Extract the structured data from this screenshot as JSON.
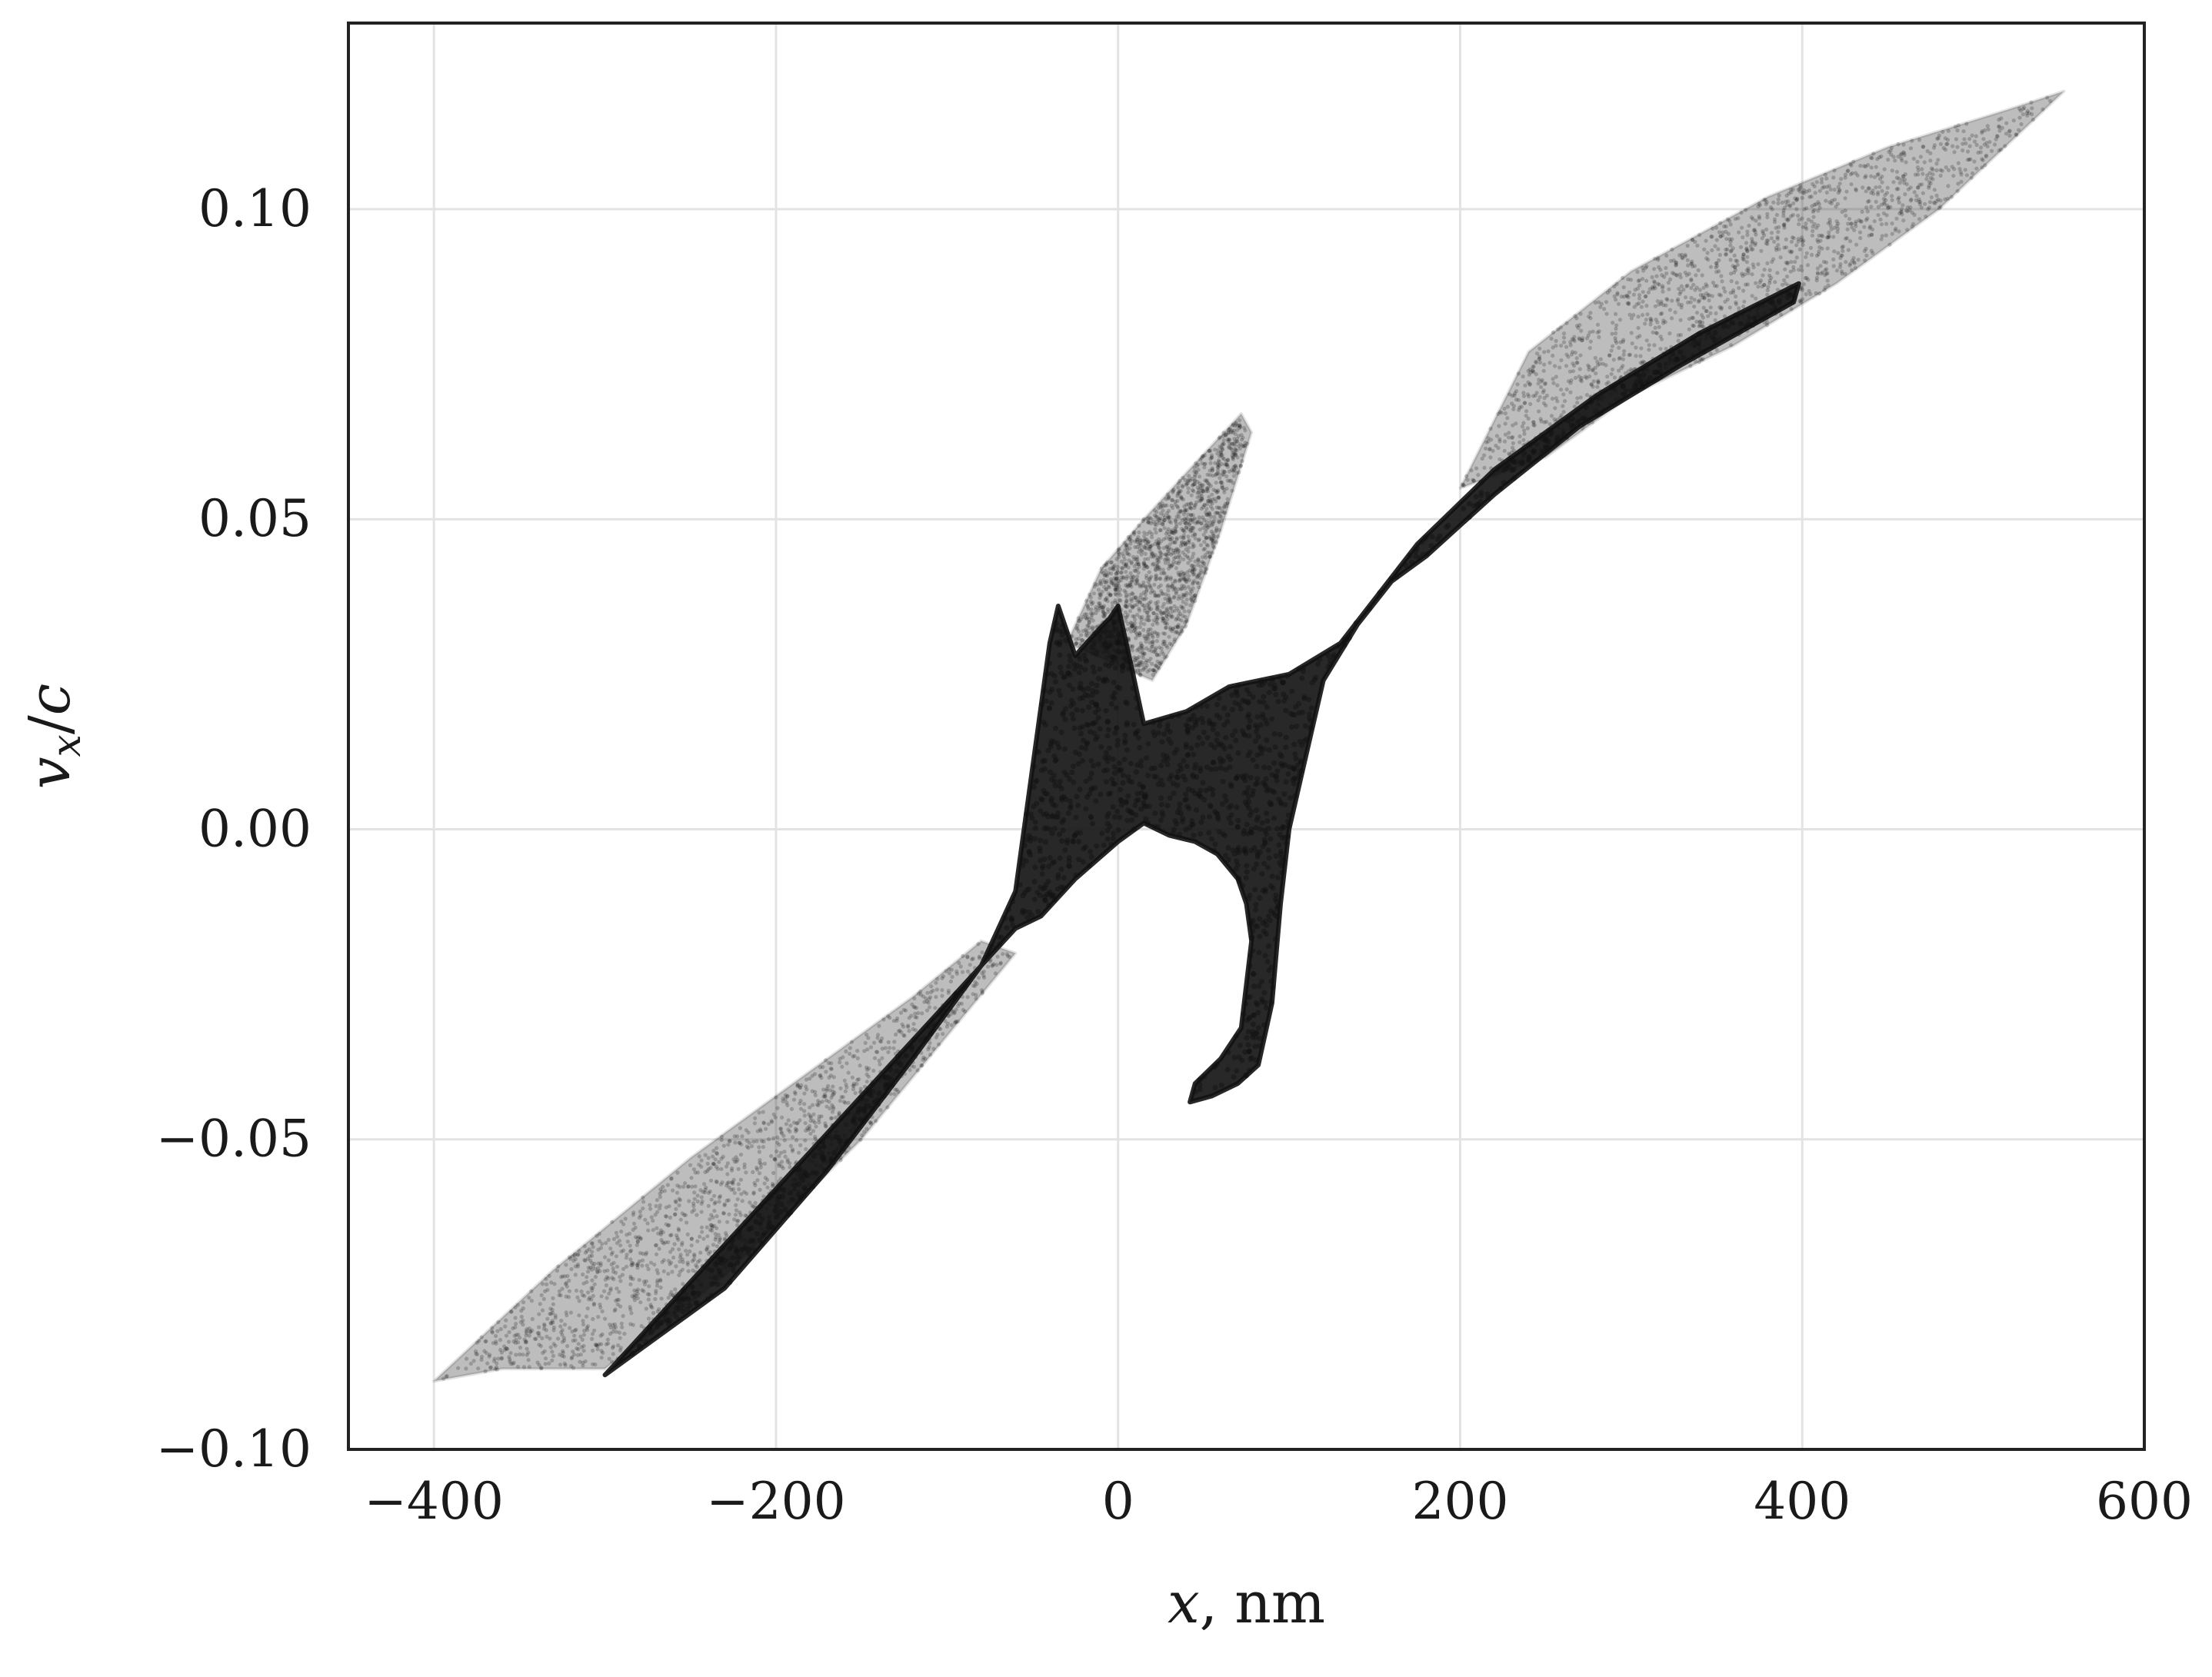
{
  "chart_data": {
    "type": "scatter",
    "title": "",
    "xlabel": {
      "variable": "x",
      "separator": ",",
      "unit": "nm"
    },
    "ylabel": {
      "variable": "v",
      "subscript": "x",
      "separator": "/",
      "denominator": "c"
    },
    "xlim": [
      -450,
      600
    ],
    "ylim": [
      -0.1,
      0.13
    ],
    "xticks": [
      {
        "value": -400,
        "label": "−400"
      },
      {
        "value": -200,
        "label": "−200"
      },
      {
        "value": 0,
        "label": "0"
      },
      {
        "value": 200,
        "label": "200"
      },
      {
        "value": 400,
        "label": "400"
      },
      {
        "value": 600,
        "label": "600"
      }
    ],
    "yticks": [
      {
        "value": -0.1,
        "label": "−0.10"
      },
      {
        "value": -0.05,
        "label": "−0.05"
      },
      {
        "value": 0.0,
        "label": "0.00"
      },
      {
        "value": 0.05,
        "label": "0.05"
      },
      {
        "value": 0.1,
        "label": "0.10"
      }
    ],
    "grid": true,
    "legend": "none",
    "point_color": "#111111",
    "series": [
      {
        "density": "faint",
        "region": [
          [
            -400,
            -0.089
          ],
          [
            -330,
            -0.071
          ],
          [
            -250,
            -0.053
          ],
          [
            -180,
            -0.039
          ],
          [
            -120,
            -0.027
          ],
          [
            -80,
            -0.018
          ],
          [
            -60,
            -0.02
          ],
          [
            -90,
            -0.03
          ],
          [
            -150,
            -0.05
          ],
          [
            -230,
            -0.072
          ],
          [
            -300,
            -0.087
          ],
          [
            -360,
            -0.087
          ]
        ]
      },
      {
        "density": "faint",
        "region": [
          [
            200,
            0.055
          ],
          [
            240,
            0.077
          ],
          [
            300,
            0.09
          ],
          [
            380,
            0.102
          ],
          [
            450,
            0.11
          ],
          [
            520,
            0.116
          ],
          [
            553,
            0.119
          ],
          [
            530,
            0.113
          ],
          [
            480,
            0.1
          ],
          [
            420,
            0.088
          ],
          [
            360,
            0.078
          ],
          [
            300,
            0.07
          ],
          [
            250,
            0.06
          ]
        ]
      },
      {
        "density": "faint",
        "region": [
          [
            -30,
            0.03
          ],
          [
            -10,
            0.042
          ],
          [
            15,
            0.05
          ],
          [
            45,
            0.059
          ],
          [
            72,
            0.067
          ],
          [
            78,
            0.064
          ],
          [
            60,
            0.048
          ],
          [
            40,
            0.033
          ],
          [
            20,
            0.024
          ]
        ]
      },
      {
        "density": "dense",
        "region": [
          [
            -300,
            -0.088
          ],
          [
            -250,
            -0.073
          ],
          [
            -180,
            -0.052
          ],
          [
            -120,
            -0.034
          ],
          [
            -80,
            -0.022
          ],
          [
            -60,
            -0.01
          ],
          [
            -50,
            0.01
          ],
          [
            -40,
            0.03
          ],
          [
            -35,
            0.036
          ],
          [
            -25,
            0.028
          ],
          [
            -12,
            0.032
          ],
          [
            -5,
            0.034
          ],
          [
            0,
            0.036
          ],
          [
            8,
            0.026
          ],
          [
            15,
            0.017
          ],
          [
            40,
            0.019
          ],
          [
            65,
            0.023
          ],
          [
            100,
            0.025
          ],
          [
            130,
            0.03
          ],
          [
            175,
            0.046
          ],
          [
            220,
            0.058
          ],
          [
            280,
            0.07
          ],
          [
            340,
            0.08
          ],
          [
            398,
            0.088
          ],
          [
            395,
            0.085
          ],
          [
            330,
            0.075
          ],
          [
            270,
            0.065
          ],
          [
            220,
            0.054
          ],
          [
            180,
            0.044
          ],
          [
            160,
            0.04
          ],
          [
            140,
            0.033
          ],
          [
            120,
            0.024
          ],
          [
            110,
            0.012
          ],
          [
            100,
            0.0
          ],
          [
            95,
            -0.012
          ],
          [
            90,
            -0.028
          ],
          [
            82,
            -0.038
          ],
          [
            70,
            -0.041
          ],
          [
            55,
            -0.043
          ],
          [
            42,
            -0.044
          ],
          [
            45,
            -0.041
          ],
          [
            60,
            -0.037
          ],
          [
            72,
            -0.032
          ],
          [
            78,
            -0.018
          ],
          [
            75,
            -0.012
          ],
          [
            70,
            -0.008
          ],
          [
            58,
            -0.004
          ],
          [
            45,
            -0.002
          ],
          [
            30,
            -0.001
          ],
          [
            15,
            0.001
          ],
          [
            0,
            -0.002
          ],
          [
            -25,
            -0.008
          ],
          [
            -45,
            -0.014
          ],
          [
            -60,
            -0.016
          ],
          [
            -80,
            -0.022
          ],
          [
            -120,
            -0.037
          ],
          [
            -170,
            -0.055
          ],
          [
            -230,
            -0.074
          ]
        ]
      }
    ]
  }
}
